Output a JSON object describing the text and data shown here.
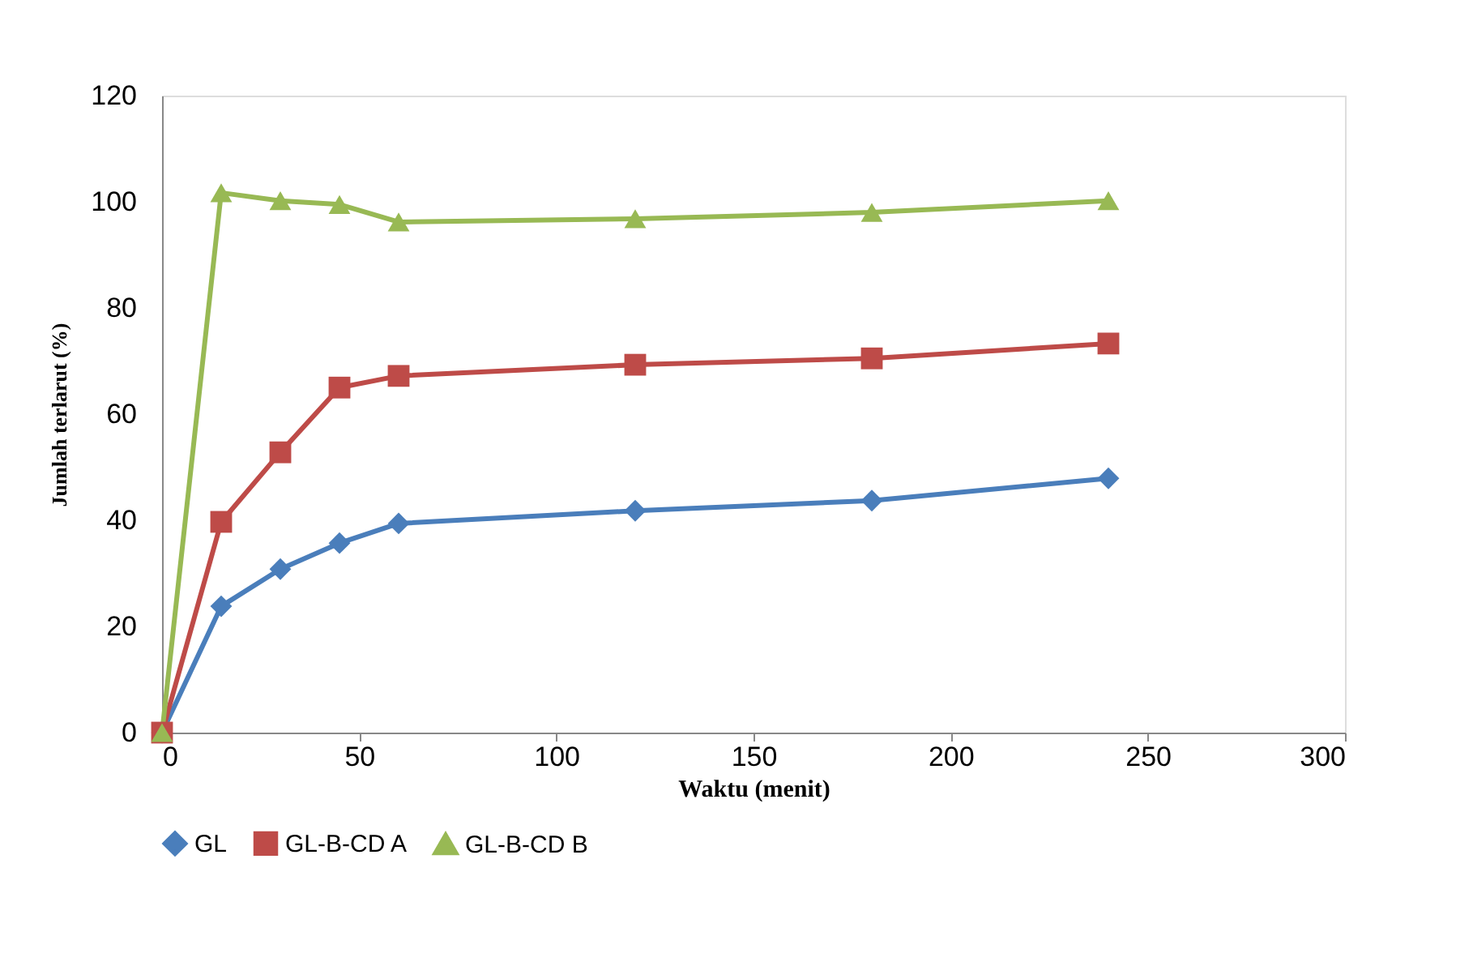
{
  "chart_data": {
    "type": "line",
    "xlabel": "Waktu (menit)",
    "ylabel": "Jumlah terlarut (%)",
    "x": [
      0,
      15,
      30,
      45,
      60,
      120,
      180,
      240
    ],
    "series": [
      {
        "name": "GL",
        "color": "#4a7ebb",
        "marker": "diamond",
        "values": [
          0,
          23.8,
          30.8,
          35.7,
          39.4,
          41.8,
          43.7,
          47.9
        ]
      },
      {
        "name": "GL-B-CD A",
        "color": "#be4b48",
        "marker": "square",
        "values": [
          0,
          39.7,
          52.8,
          65,
          67.2,
          69.3,
          70.5,
          73.3
        ]
      },
      {
        "name": "GL-B-CD B",
        "color": "#98b954",
        "marker": "triangle",
        "values": [
          0,
          101.7,
          100.2,
          99.5,
          96.2,
          96.8,
          98,
          100.2
        ]
      }
    ],
    "xlim": [
      0,
      300
    ],
    "xticks": [
      0,
      50,
      100,
      150,
      200,
      250,
      300
    ],
    "ylim": [
      0,
      120
    ],
    "yticks": [
      0,
      20,
      40,
      60,
      80,
      100,
      120
    ],
    "grid": false,
    "legend": "bottom"
  }
}
